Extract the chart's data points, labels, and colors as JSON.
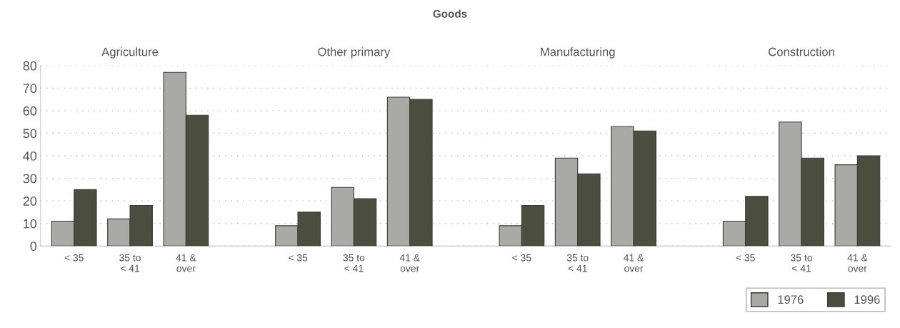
{
  "chart_data": {
    "type": "bar",
    "title": "Goods",
    "annotations": [
      "Agriculture",
      "Other primary",
      "Manufacturing",
      "Construction"
    ],
    "categories": [
      "< 35",
      "35 to\n< 41",
      "41 &\nover",
      null,
      "< 35",
      "35 to\n< 41",
      "41 &\nover",
      null,
      "< 35",
      "35 to\n< 41",
      "41 &\nover",
      null,
      "< 35",
      "35 to\n< 41",
      "41 &\nover"
    ],
    "series": [
      {
        "name": "1976",
        "color": "#a9aaa5",
        "values": [
          11,
          12,
          77,
          null,
          9,
          26,
          66,
          null,
          9,
          39,
          53,
          null,
          11,
          55,
          36
        ]
      },
      {
        "name": "1996",
        "color": "#4b4d3e",
        "values": [
          25,
          18,
          58,
          null,
          15,
          21,
          65,
          null,
          18,
          32,
          51,
          null,
          22,
          39,
          40
        ]
      }
    ],
    "ylim": [
      0,
      80
    ],
    "yticks": [
      0,
      10,
      20,
      30,
      40,
      50,
      60,
      70,
      80
    ],
    "grid": "y",
    "legend": "bottom right"
  }
}
